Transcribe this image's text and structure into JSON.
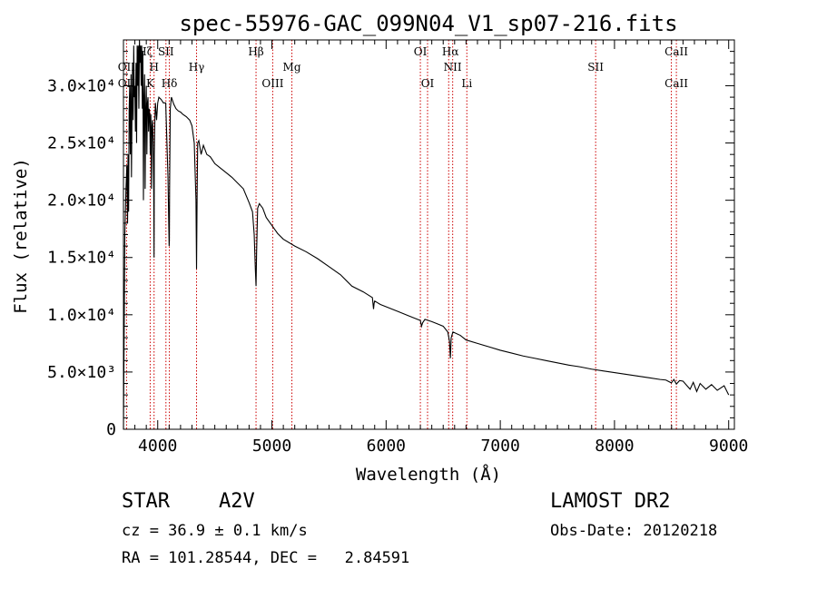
{
  "chart_data": {
    "type": "line",
    "title": "spec-55976-GAC_099N04_V1_sp07-216.fits",
    "xlabel": "Wavelength (Å)",
    "ylabel": "Flux (relative)",
    "xlim": [
      3700,
      9050
    ],
    "ylim": [
      0,
      34000
    ],
    "xticks": [
      {
        "value": 4000,
        "label": "4000"
      },
      {
        "value": 5000,
        "label": "5000"
      },
      {
        "value": 6000,
        "label": "6000"
      },
      {
        "value": 7000,
        "label": "7000"
      },
      {
        "value": 8000,
        "label": "8000"
      },
      {
        "value": 9000,
        "label": "9000"
      }
    ],
    "yticks": [
      {
        "value": 0,
        "label": "0"
      },
      {
        "value": 5000,
        "label": "5.0×10³"
      },
      {
        "value": 10000,
        "label": "1.0×10⁴"
      },
      {
        "value": 15000,
        "label": "1.5×10⁴"
      },
      {
        "value": 20000,
        "label": "2.0×10⁴"
      },
      {
        "value": 25000,
        "label": "2.5×10⁴"
      },
      {
        "value": 30000,
        "label": "3.0×10⁴"
      }
    ],
    "series": [
      {
        "x": [
          3700,
          3712,
          3722,
          3730,
          3736,
          3740,
          3745,
          3750,
          3755,
          3760,
          3766,
          3770,
          3775,
          3780,
          3785,
          3790,
          3795,
          3800,
          3805,
          3810,
          3815,
          3820,
          3825,
          3830,
          3835,
          3840,
          3845,
          3850,
          3855,
          3860,
          3865,
          3870,
          3875,
          3880,
          3885,
          3890,
          3895,
          3900,
          3905,
          3910,
          3915,
          3920,
          3925,
          3930,
          3935,
          3940,
          3945,
          3950,
          3955,
          3960,
          3965,
          3968,
          3970,
          3975,
          3980,
          3990,
          4000,
          4010,
          4030,
          4050,
          4070,
          4090,
          4100,
          4102,
          4104,
          4110,
          4120,
          4140,
          4160,
          4180,
          4200,
          4220,
          4250,
          4280,
          4300,
          4320,
          4335,
          4340,
          4345,
          4350,
          4360,
          4380,
          4400,
          4430,
          4460,
          4480,
          4500,
          4550,
          4600,
          4650,
          4700,
          4750,
          4800,
          4830,
          4845,
          4855,
          4861,
          4866,
          4875,
          4890,
          4920,
          4950,
          5000,
          5050,
          5100,
          5200,
          5300,
          5400,
          5500,
          5600,
          5700,
          5800,
          5880,
          5890,
          5895,
          5900,
          5950,
          6000,
          6100,
          6200,
          6300,
          6310,
          6320,
          6340,
          6400,
          6450,
          6500,
          6540,
          6555,
          6563,
          6570,
          6585,
          6650,
          6700,
          6800,
          6900,
          7000,
          7100,
          7200,
          7300,
          7400,
          7500,
          7600,
          7700,
          7800,
          7900,
          8000,
          8100,
          8200,
          8300,
          8400,
          8450,
          8498,
          8520,
          8542,
          8570,
          8600,
          8662,
          8690,
          8720,
          8750,
          8800,
          8850,
          8900,
          8960,
          9000
        ],
        "y": [
          0,
          17000,
          21000,
          23000,
          18000,
          24000,
          19000,
          28000,
          30000,
          24000,
          31000,
          22000,
          28000,
          32000,
          27000,
          33500,
          29000,
          30000,
          26000,
          32000,
          25000,
          33500,
          30000,
          33500,
          28000,
          34000,
          32000,
          33500,
          30000,
          33500,
          28000,
          33000,
          20000,
          29000,
          31000,
          21000,
          28000,
          30000,
          24000,
          28500,
          29000,
          26000,
          28000,
          27500,
          24000,
          27500,
          21000,
          26500,
          27000,
          25000,
          21000,
          15000,
          24000,
          27000,
          28500,
          27000,
          28500,
          29000,
          28800,
          28500,
          28500,
          22000,
          16000,
          16500,
          21000,
          28000,
          29000,
          28400,
          28000,
          27800,
          27700,
          27500,
          27300,
          27000,
          26500,
          25000,
          20000,
          14000,
          20500,
          25000,
          25200,
          24000,
          24800,
          24000,
          23800,
          23500,
          23200,
          22800,
          22400,
          22000,
          21500,
          21000,
          19800,
          19000,
          17000,
          14000,
          12500,
          15500,
          19300,
          19700,
          19300,
          18500,
          17800,
          17100,
          16600,
          16000,
          15500,
          14900,
          14200,
          13500,
          12500,
          12000,
          11500,
          10500,
          11000,
          11200,
          10900,
          10700,
          10300,
          9900,
          9500,
          9000,
          9300,
          9600,
          9400,
          9200,
          9000,
          8500,
          7700,
          6200,
          8000,
          8500,
          8200,
          7800,
          7500,
          7200,
          6900,
          6650,
          6400,
          6200,
          6000,
          5800,
          5600,
          5450,
          5250,
          5100,
          4950,
          4800,
          4650,
          4500,
          4350,
          4300,
          4050,
          4350,
          3950,
          4250,
          4200,
          3500,
          4100,
          3300,
          4000,
          3500,
          3900,
          3400,
          3800,
          3000
        ]
      }
    ],
    "line_markers": [
      {
        "label": "Hζ",
        "wavelength": 3889,
        "row": "top"
      },
      {
        "label": "OII",
        "wavelength": 3727,
        "row": "second"
      },
      {
        "label": "OII",
        "wavelength": 3727,
        "row": "third"
      },
      {
        "label": "H",
        "wavelength": 3968,
        "row": "second"
      },
      {
        "label": "K",
        "wavelength": 3934,
        "row": "third"
      },
      {
        "label": "SII",
        "wavelength": 4072,
        "row": "top"
      },
      {
        "label": "Hδ",
        "wavelength": 4102,
        "row": "third"
      },
      {
        "label": "Hγ",
        "wavelength": 4340,
        "row": "second"
      },
      {
        "label": "Hβ",
        "wavelength": 4861,
        "row": "top"
      },
      {
        "label": "OIII",
        "wavelength": 5007,
        "row": "third"
      },
      {
        "label": "Mg",
        "wavelength": 5175,
        "row": "second"
      },
      {
        "label": "OI",
        "wavelength": 6300,
        "row": "top"
      },
      {
        "label": "OI",
        "wavelength": 6363,
        "row": "third"
      },
      {
        "label": "Hα",
        "wavelength": 6563,
        "row": "top"
      },
      {
        "label": "NII",
        "wavelength": 6583,
        "row": "second"
      },
      {
        "label": "Li",
        "wavelength": 6707,
        "row": "third"
      },
      {
        "label": "SII",
        "wavelength": 7835,
        "row": "second"
      },
      {
        "label": "CaII",
        "wavelength": 8542,
        "row": "top"
      },
      {
        "label": "CaII",
        "wavelength": 8542,
        "row": "third"
      }
    ],
    "marker_lines": [
      3727,
      3934,
      3968,
      4072,
      4102,
      4340,
      4861,
      5007,
      5175,
      6300,
      6363,
      6548,
      6583,
      6707,
      7835,
      8498,
      8542
    ],
    "marker_color": "#cc0000",
    "line_color": "#000000",
    "grid": false
  },
  "footer": {
    "object_class": "STAR",
    "subclass": "A2V",
    "redshift": "cz = 36.9 ± 0.1 km/s",
    "coords": "RA = 101.28544, DEC =   2.84591",
    "survey": "LAMOST DR2",
    "obs_date": "Obs-Date: 20120218"
  }
}
